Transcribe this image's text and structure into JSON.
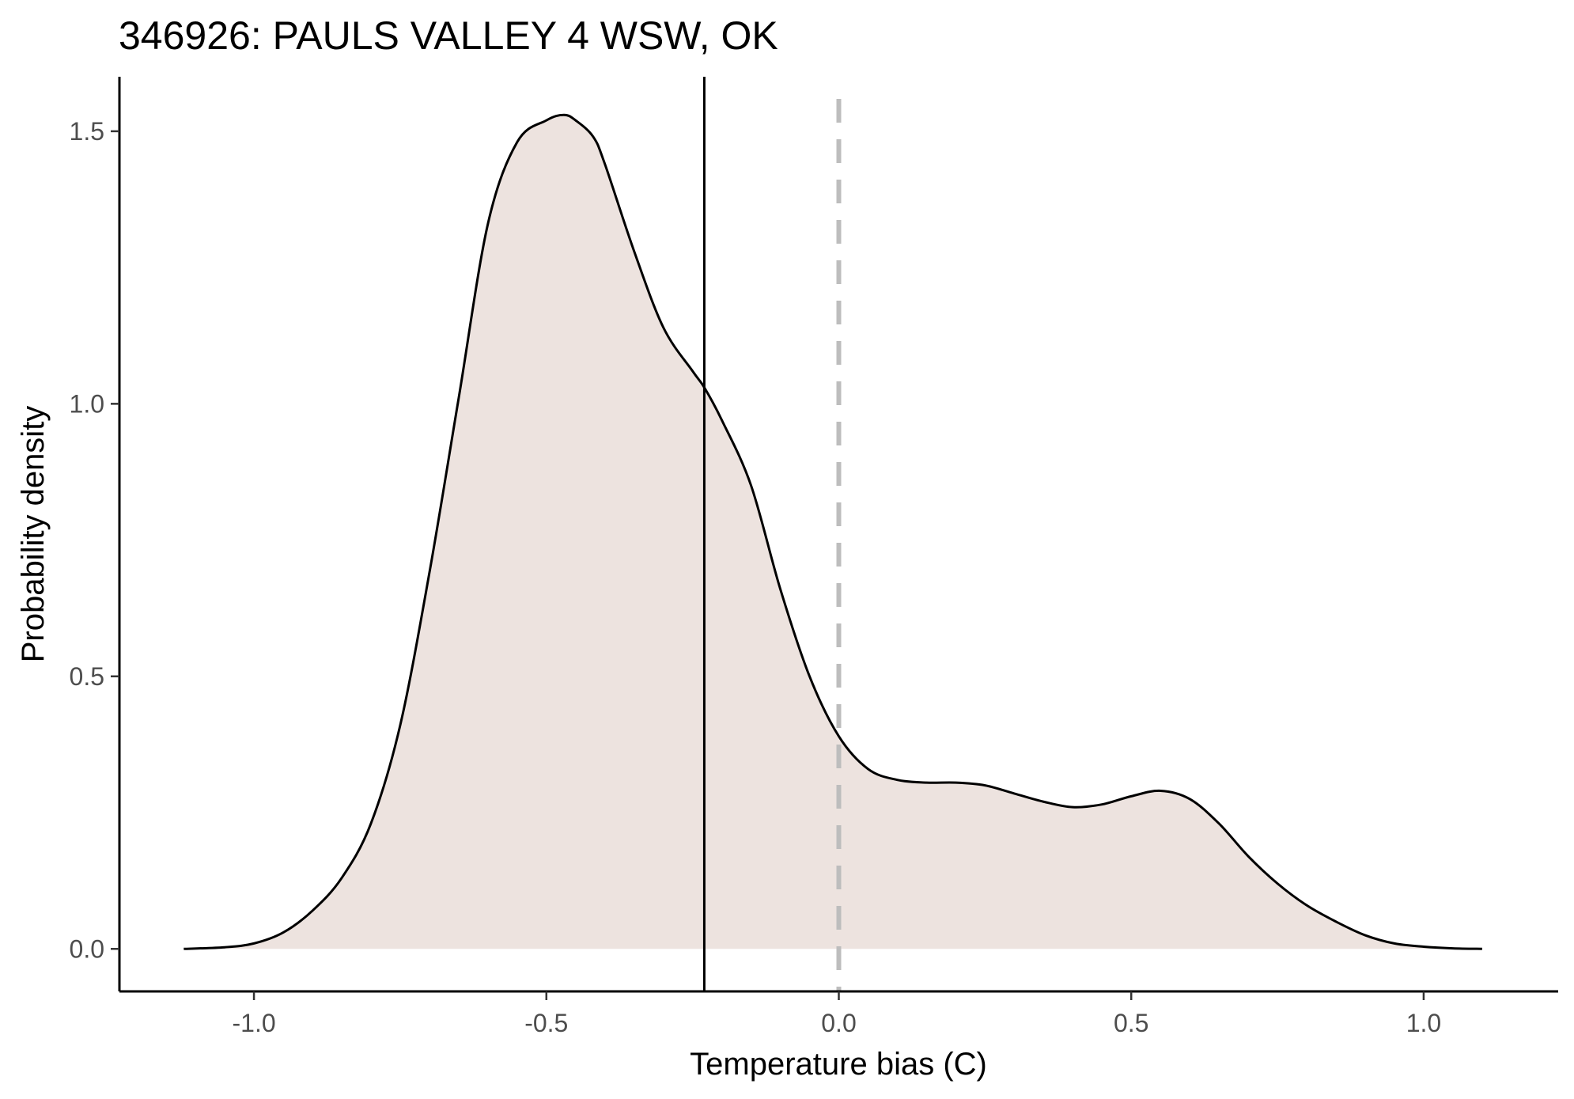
{
  "chart_data": {
    "type": "area",
    "title": "346926: PAULS VALLEY 4 WSW, OK",
    "xlabel": "Temperature bias (C)",
    "ylabel": "Probability density",
    "xlim": [
      -1.23,
      1.23
    ],
    "ylim": [
      -0.078,
      1.6
    ],
    "x_ticks": [
      -1.0,
      -0.5,
      0.0,
      0.5,
      1.0
    ],
    "x_tick_labels": [
      "-1.0",
      "-0.5",
      "0.0",
      "0.5",
      "1.0"
    ],
    "y_ticks": [
      0.0,
      0.5,
      1.0,
      1.5
    ],
    "y_tick_labels": [
      "0.0",
      "0.5",
      "1.0",
      "1.5"
    ],
    "grid": false,
    "legend": "none",
    "fill_color": "#ede3df",
    "line_color": "#000000",
    "mean_line": {
      "x": -0.23,
      "color": "#000000",
      "style": "solid"
    },
    "zero_line": {
      "x": 0.0,
      "color": "#bdbdbd",
      "style": "dashed"
    },
    "x": [
      -1.12,
      -1.05,
      -1.0,
      -0.95,
      -0.9,
      -0.85,
      -0.8,
      -0.75,
      -0.7,
      -0.65,
      -0.6,
      -0.55,
      -0.5,
      -0.47,
      -0.45,
      -0.42,
      -0.4,
      -0.35,
      -0.3,
      -0.25,
      -0.23,
      -0.2,
      -0.15,
      -0.1,
      -0.05,
      0.0,
      0.05,
      0.1,
      0.15,
      0.2,
      0.25,
      0.3,
      0.35,
      0.4,
      0.45,
      0.5,
      0.55,
      0.6,
      0.65,
      0.7,
      0.75,
      0.8,
      0.85,
      0.9,
      0.95,
      1.0,
      1.05,
      1.1
    ],
    "y": [
      0.0,
      0.003,
      0.01,
      0.03,
      0.07,
      0.13,
      0.23,
      0.41,
      0.69,
      1.01,
      1.33,
      1.48,
      1.52,
      1.53,
      1.52,
      1.49,
      1.44,
      1.28,
      1.14,
      1.06,
      1.03,
      0.97,
      0.85,
      0.66,
      0.5,
      0.39,
      0.33,
      0.31,
      0.305,
      0.305,
      0.3,
      0.285,
      0.27,
      0.26,
      0.265,
      0.28,
      0.29,
      0.275,
      0.23,
      0.17,
      0.12,
      0.08,
      0.05,
      0.025,
      0.01,
      0.004,
      0.001,
      0.0
    ]
  }
}
